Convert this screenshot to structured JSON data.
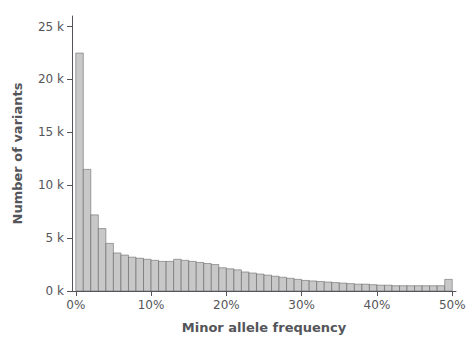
{
  "chart_data": {
    "type": "histogram",
    "bins": [
      0,
      0.01,
      0.02,
      0.03,
      0.04,
      0.05,
      0.06,
      0.07,
      0.08,
      0.09,
      0.1,
      0.11,
      0.12,
      0.13,
      0.14,
      0.15,
      0.16,
      0.17,
      0.18,
      0.19,
      0.2,
      0.21,
      0.22,
      0.23,
      0.24,
      0.25,
      0.26,
      0.27,
      0.28,
      0.29,
      0.3,
      0.31,
      0.32,
      0.33,
      0.34,
      0.35,
      0.36,
      0.37,
      0.38,
      0.39,
      0.4,
      0.41,
      0.42,
      0.43,
      0.44,
      0.45,
      0.46,
      0.47,
      0.48,
      0.49,
      0.5
    ],
    "values": [
      22500,
      11500,
      7200,
      5900,
      4500,
      3600,
      3400,
      3200,
      3100,
      3000,
      2900,
      2800,
      2800,
      3000,
      2900,
      2800,
      2700,
      2600,
      2500,
      2200,
      2100,
      2000,
      1800,
      1700,
      1600,
      1500,
      1400,
      1300,
      1200,
      1100,
      1000,
      950,
      900,
      850,
      800,
      750,
      700,
      650,
      650,
      600,
      550,
      550,
      500,
      500,
      500,
      500,
      500,
      500,
      500,
      1100
    ],
    "color": "#c8c8c8",
    "xlim": [
      -0.005,
      0.505
    ],
    "xticks": [
      {
        "value": 0,
        "label": "0%"
      },
      {
        "value": 0.1,
        "label": "10%"
      },
      {
        "value": 0.2,
        "label": "20%"
      },
      {
        "value": 0.3,
        "label": "30%"
      },
      {
        "value": 0.4,
        "label": "40%"
      },
      {
        "value": 0.5,
        "label": "50%"
      }
    ],
    "ylim": [
      0,
      26000
    ],
    "yticks": [
      {
        "value": 0,
        "label": "0 k"
      },
      {
        "value": 5000,
        "label": "5 k"
      },
      {
        "value": 10000,
        "label": "10 k"
      },
      {
        "value": 15000,
        "label": "15 k"
      },
      {
        "value": 20000,
        "label": "20 k"
      },
      {
        "value": 25000,
        "label": "25 k"
      }
    ],
    "xlabel": "Minor allele frequency",
    "ylabel": "Number of variants",
    "grid": false
  }
}
